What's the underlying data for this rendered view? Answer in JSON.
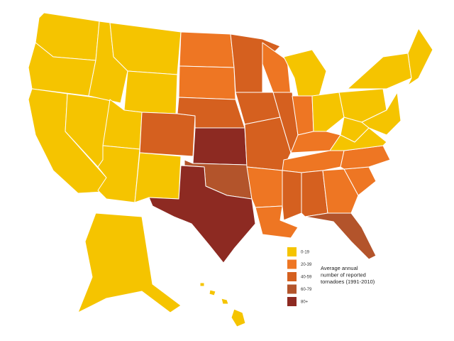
{
  "legend": {
    "title": [
      "Average annual",
      "number of reported",
      "tornadoes (1991-2010)"
    ],
    "items": [
      {
        "label": "0-19",
        "color": "#f5c400"
      },
      {
        "label": "20-39",
        "color": "#ee7623"
      },
      {
        "label": "40-59",
        "color": "#d5601f"
      },
      {
        "label": "60-79",
        "color": "#b3542b"
      },
      {
        "label": "80+",
        "color": "#8d2a22"
      }
    ]
  }
}
